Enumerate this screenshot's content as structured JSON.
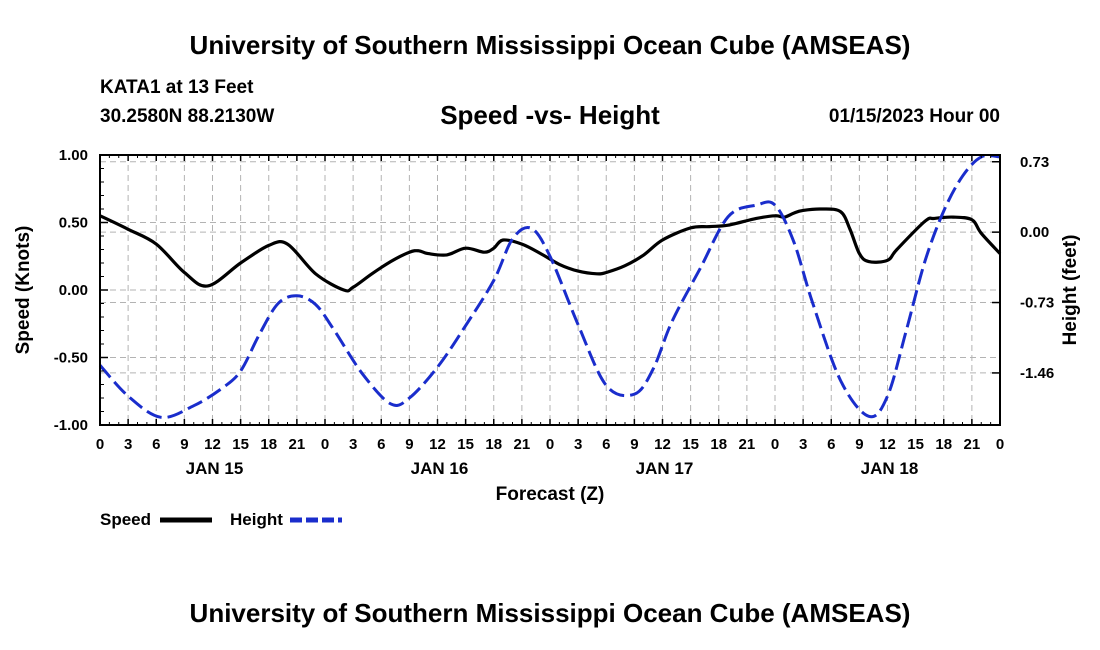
{
  "page": {
    "title_top": "University of Southern Mississippi Ocean Cube (AMSEAS)",
    "title_bottom": "University of Southern Mississippi Ocean Cube (AMSEAS)",
    "station": "KATA1 at 13 Feet",
    "location": "30.2580N  88.2130W",
    "timestamp": "01/15/2023 Hour 00"
  },
  "chart_data": {
    "type": "line",
    "title": "Speed -vs- Height",
    "xlabel": "Forecast (Z)",
    "ylabel": "Speed (Knots)",
    "y2label": "Height (feet)",
    "x_range": [
      0,
      96
    ],
    "ylim": [
      -1.0,
      1.0
    ],
    "y2lim": [
      -2.0,
      0.8
    ],
    "y_ticks": [
      "1.00",
      "0.50",
      "0.00",
      "-0.50",
      "-1.00"
    ],
    "y2_ticks": [
      "0.73",
      "0.00",
      "-0.73",
      "-1.46"
    ],
    "x_tick_labels": [
      "0",
      "3",
      "6",
      "9",
      "12",
      "15",
      "18",
      "21",
      "0",
      "3",
      "6",
      "9",
      "12",
      "15",
      "18",
      "21",
      "0",
      "3",
      "6",
      "9",
      "12",
      "15",
      "18",
      "21",
      "0",
      "3",
      "6",
      "9",
      "12",
      "15",
      "18",
      "21",
      "0"
    ],
    "day_labels": [
      {
        "hour": 12,
        "label": "JAN 15"
      },
      {
        "hour": 36,
        "label": "JAN 16"
      },
      {
        "hour": 60,
        "label": "JAN 17"
      },
      {
        "hour": 84,
        "label": "JAN 18"
      }
    ],
    "grid": true,
    "legend_position": "bottom-left",
    "series": [
      {
        "name": "Speed",
        "axis": "left",
        "color": "#000000",
        "style": "solid",
        "x": [
          0,
          3,
          6,
          9,
          11.5,
          15,
          18,
          20,
          23,
          26,
          27,
          29,
          31,
          33,
          34,
          35,
          37,
          39,
          41,
          42,
          43,
          45,
          47,
          49,
          51,
          53,
          54,
          56,
          58,
          60,
          63,
          65,
          67,
          70,
          72,
          73,
          74,
          75,
          77,
          79,
          80,
          81,
          82,
          84,
          85,
          88,
          89,
          91,
          93,
          94,
          96
        ],
        "y": [
          0.55,
          0.45,
          0.34,
          0.13,
          0.03,
          0.2,
          0.33,
          0.34,
          0.12,
          0.0,
          0.02,
          0.12,
          0.21,
          0.28,
          0.29,
          0.27,
          0.26,
          0.31,
          0.28,
          0.31,
          0.37,
          0.34,
          0.27,
          0.19,
          0.14,
          0.12,
          0.13,
          0.18,
          0.26,
          0.37,
          0.46,
          0.47,
          0.48,
          0.53,
          0.55,
          0.54,
          0.57,
          0.59,
          0.6,
          0.58,
          0.45,
          0.27,
          0.21,
          0.22,
          0.3,
          0.51,
          0.53,
          0.54,
          0.52,
          0.42,
          0.27
        ]
      },
      {
        "name": "Height",
        "axis": "right",
        "color": "#1a2dcc",
        "style": "dashed",
        "x": [
          0,
          3,
          6.5,
          10,
          13,
          15,
          17,
          19,
          21,
          23,
          25,
          28,
          31,
          33,
          36,
          39,
          42,
          44,
          46,
          48,
          51,
          54,
          57,
          59,
          61,
          64,
          67,
          70,
          72,
          74,
          76,
          79,
          82,
          84,
          86,
          88,
          90,
          92,
          94,
          96
        ],
        "y": [
          -1.38,
          -1.7,
          -1.92,
          -1.8,
          -1.62,
          -1.44,
          -1.06,
          -0.74,
          -0.66,
          -0.75,
          -1.02,
          -1.47,
          -1.78,
          -1.72,
          -1.4,
          -0.97,
          -0.5,
          -0.07,
          0.04,
          -0.25,
          -0.96,
          -1.59,
          -1.68,
          -1.42,
          -0.93,
          -0.38,
          0.16,
          0.28,
          0.28,
          -0.1,
          -0.73,
          -1.54,
          -1.91,
          -1.7,
          -1.02,
          -0.3,
          0.22,
          0.58,
          0.78,
          0.78
        ]
      }
    ]
  }
}
